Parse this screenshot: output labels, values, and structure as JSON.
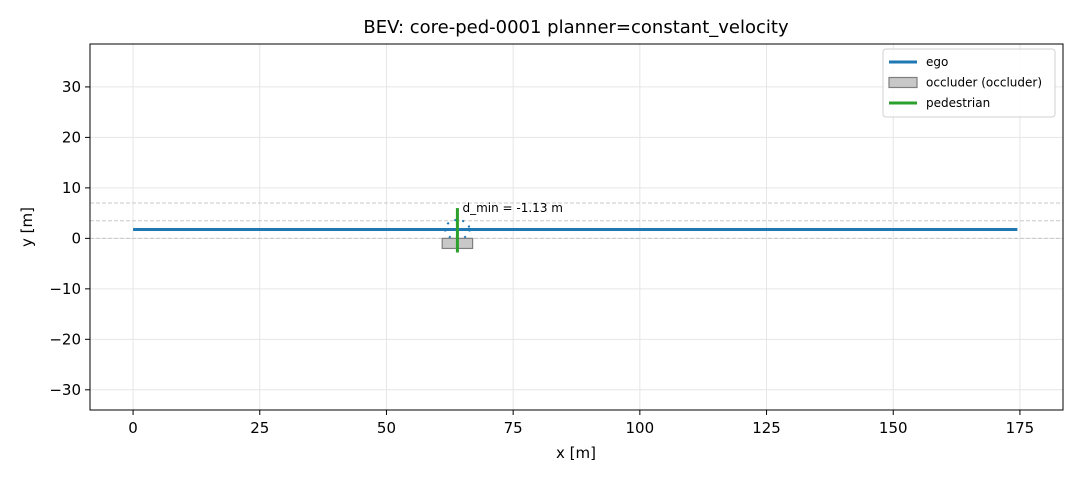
{
  "chart_data": {
    "type": "line",
    "title": "BEV: core-ped-0001  planner=constant_velocity",
    "xlabel": "x [m]",
    "ylabel": "y [m]",
    "xlim": [
      -8.5,
      183.5
    ],
    "ylim": [
      -34,
      38.5
    ],
    "xticks": [
      0,
      25,
      50,
      75,
      100,
      125,
      150,
      175
    ],
    "yticks": [
      -30,
      -20,
      -10,
      0,
      10,
      20,
      30
    ],
    "grid": true,
    "lane_lines": [
      0,
      3.5,
      7.0
    ],
    "series": [
      {
        "name": "ego",
        "kind": "line",
        "color": "#1f77b4",
        "x": [
          0,
          174.5
        ],
        "y": [
          1.75,
          1.75
        ]
      },
      {
        "name": "occluder (occluder)",
        "kind": "rect",
        "fill": "#c8c8c8",
        "stroke": "#7f7f7f",
        "x": [
          61,
          67
        ],
        "y": [
          -2.0,
          0.0
        ]
      },
      {
        "name": "pedestrian",
        "kind": "line",
        "color": "#2ca02c",
        "x": [
          64,
          64
        ],
        "y": [
          6.0,
          -2.8
        ]
      }
    ],
    "ego_footprint": {
      "color": "#1f77b4",
      "center": [
        64.0,
        1.75
      ],
      "half_length": 2.4,
      "half_width": 1.9
    },
    "annotation": {
      "text": "d_min = -1.13 m",
      "x": 65.0,
      "y": 5.2
    },
    "legend_position": "upper right"
  }
}
